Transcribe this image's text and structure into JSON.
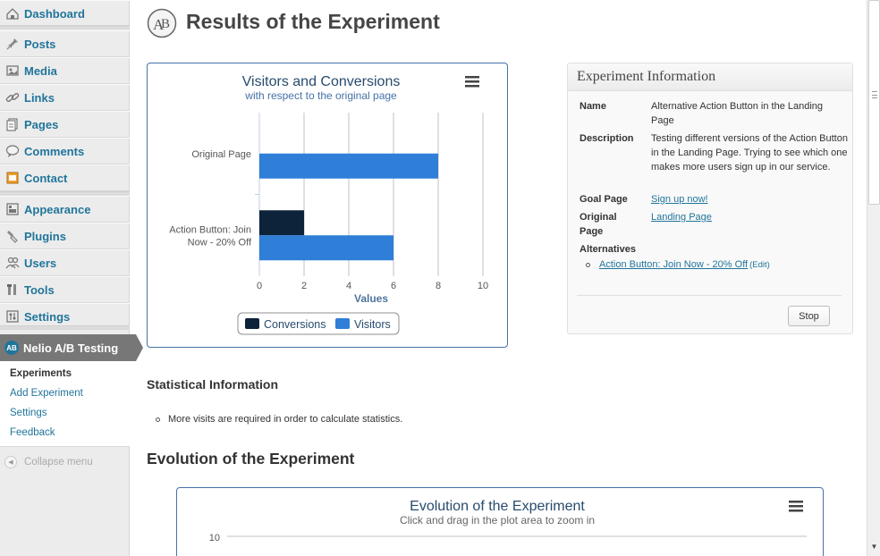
{
  "sidebar": {
    "items": [
      {
        "label": "Dashboard",
        "icon": "dashboard-icon"
      },
      {
        "label": "Posts",
        "icon": "pin-icon"
      },
      {
        "label": "Media",
        "icon": "media-icon"
      },
      {
        "label": "Links",
        "icon": "link-icon"
      },
      {
        "label": "Pages",
        "icon": "pages-icon"
      },
      {
        "label": "Comments",
        "icon": "comment-icon"
      },
      {
        "label": "Contact",
        "icon": "contact-icon"
      },
      {
        "label": "Appearance",
        "icon": "appearance-icon"
      },
      {
        "label": "Plugins",
        "icon": "plugin-icon"
      },
      {
        "label": "Users",
        "icon": "users-icon"
      },
      {
        "label": "Tools",
        "icon": "tools-icon"
      },
      {
        "label": "Settings",
        "icon": "settings-icon"
      }
    ],
    "active": {
      "label": "Nelio A/B Testing",
      "icon": "nelio-logo-icon"
    },
    "submenu": [
      "Experiments",
      "Add Experiment",
      "Settings",
      "Feedback"
    ],
    "collapse_label": "Collapse menu"
  },
  "page": {
    "title": "Results of the Experiment"
  },
  "bar_chart": {
    "title": "Visitors and Conversions",
    "subtitle": "with respect to the original page",
    "axis_title": "Values"
  },
  "info": {
    "title": "Experiment Information",
    "name_label": "Name",
    "name_value": "Alternative Action Button in the Landing Page",
    "description_label": "Description",
    "description_value": "Testing different versions of the Action Button in the Landing Page. Trying to see which one makes more users sign up in our service.",
    "goal_label": "Goal Page",
    "goal_value": "Sign up now!",
    "original_label": "Original Page",
    "original_value": "Landing Page",
    "alternatives_label": "Alternatives",
    "alternative_1": "Action Button: Join Now - 20% Off",
    "edit_label": "(Edit)",
    "stop_label": "Stop"
  },
  "stats": {
    "heading": "Statistical Information",
    "message": "More visits are required in order to calculate statistics."
  },
  "evolution": {
    "heading": "Evolution of the Experiment",
    "chart_title": "Evolution of the Experiment",
    "chart_subtitle": "Click and drag in the plot area to zoom in",
    "first_tick": "10"
  },
  "chart_data": {
    "type": "bar",
    "orientation": "horizontal",
    "title": "Visitors and Conversions",
    "subtitle": "with respect to the original page",
    "categories": [
      "Original Page",
      "Action Button: Join Now - 20% Off"
    ],
    "series": [
      {
        "name": "Conversions",
        "values": [
          0,
          2
        ],
        "color": "#0d233a"
      },
      {
        "name": "Visitors",
        "values": [
          8,
          6
        ],
        "color": "#2f7ed8"
      }
    ],
    "xlabel": "Values",
    "xlim": [
      0,
      10
    ],
    "ticks": [
      0,
      2,
      4,
      6,
      8,
      10
    ],
    "grid": true,
    "legend": "bottom-center"
  }
}
